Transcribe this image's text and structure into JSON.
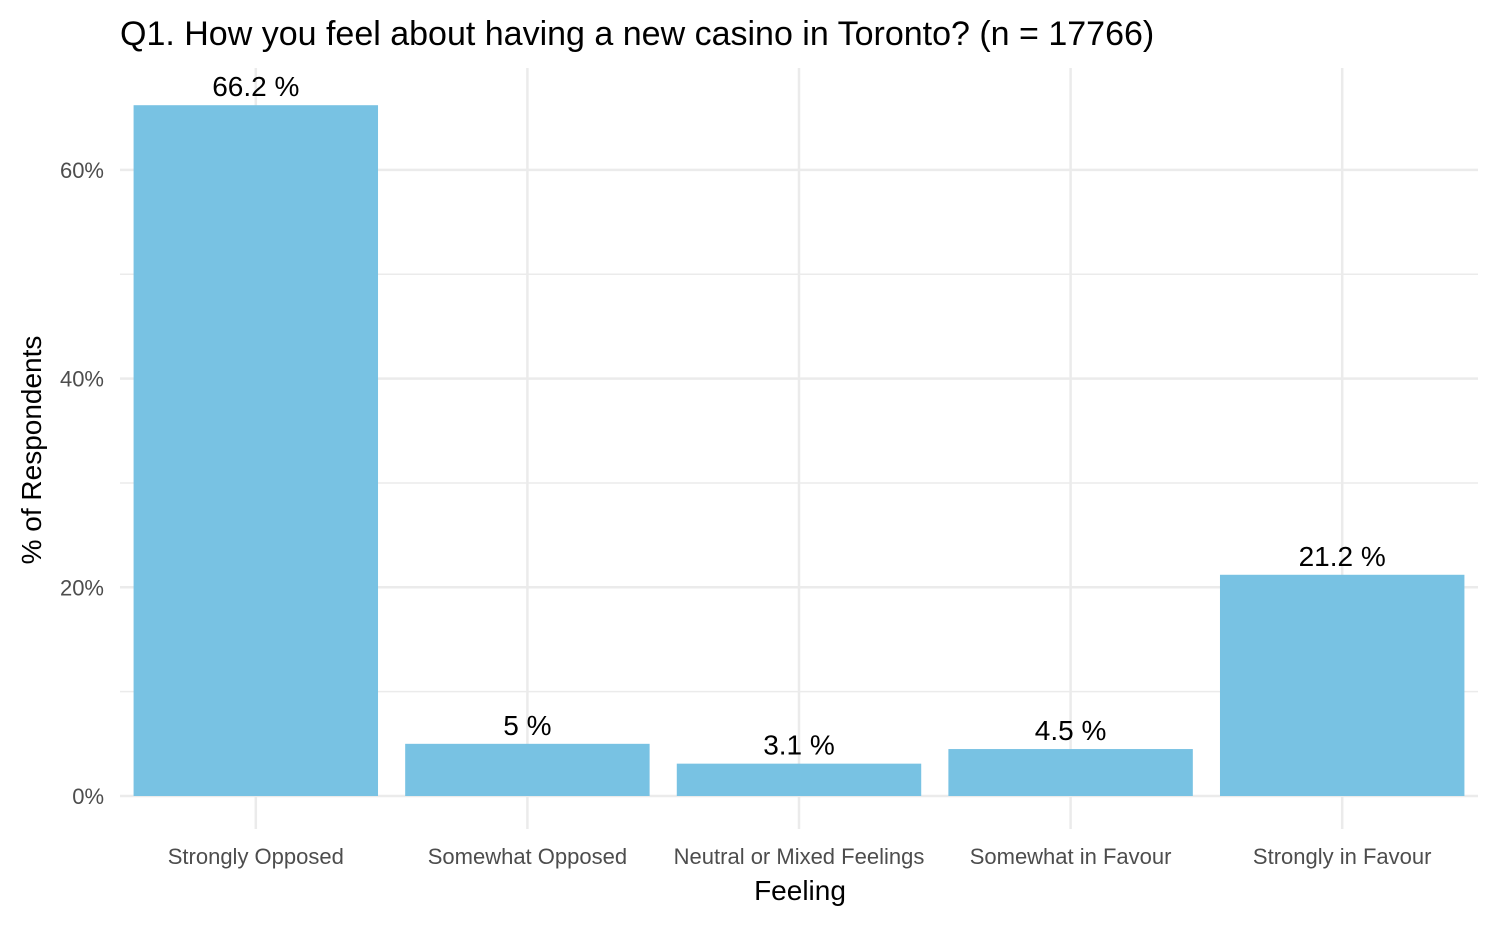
{
  "chart_data": {
    "type": "bar",
    "title": "Q1. How you feel about having a new casino in Toronto? (n = 17766)",
    "xlabel": "Feeling",
    "ylabel": "% of Respondents",
    "categories": [
      "Strongly Opposed",
      "Somewhat Opposed",
      "Neutral or Mixed Feelings",
      "Somewhat in Favour",
      "Strongly in Favour"
    ],
    "values": [
      66.2,
      5,
      3.1,
      4.5,
      21.2
    ],
    "data_labels": [
      "66.2 %",
      "5 %",
      "3.1 %",
      "4.5 %",
      "21.2 %"
    ],
    "yticks": [
      0,
      20,
      40,
      60
    ],
    "ytick_labels": [
      "0%",
      "20%",
      "40%",
      "60%"
    ],
    "ylim": [
      0,
      69.5
    ],
    "grid": true,
    "legend": "none",
    "colors": {
      "bar": "#78C2E3",
      "grid": "#EBEBEB",
      "background": "#FFFFFF"
    }
  }
}
